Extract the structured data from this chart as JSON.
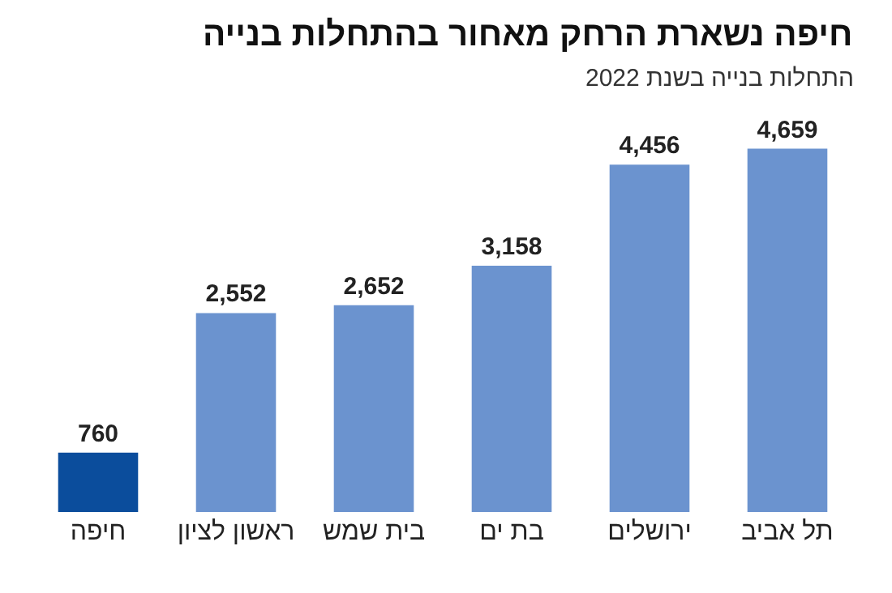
{
  "chart_data": {
    "type": "bar",
    "title": "חיפה נשארת הרחק מאחור בהתחלות בנייה",
    "subtitle": "התחלות בנייה בשנת 2022",
    "categories": [
      "חיפה",
      "ראשון לציון",
      "בית שמש",
      "בת ים",
      "ירושלים",
      "תל אביב"
    ],
    "values": [
      760,
      2552,
      2652,
      3158,
      4456,
      4659
    ],
    "colors": [
      "#0b4d9c",
      "#6b93cf",
      "#6b93cf",
      "#6b93cf",
      "#6b93cf",
      "#6b93cf"
    ],
    "value_labels": [
      "760",
      "2,552",
      "2,652",
      "3,158",
      "4,456",
      "4,659"
    ],
    "tick_labels": "x"
  }
}
